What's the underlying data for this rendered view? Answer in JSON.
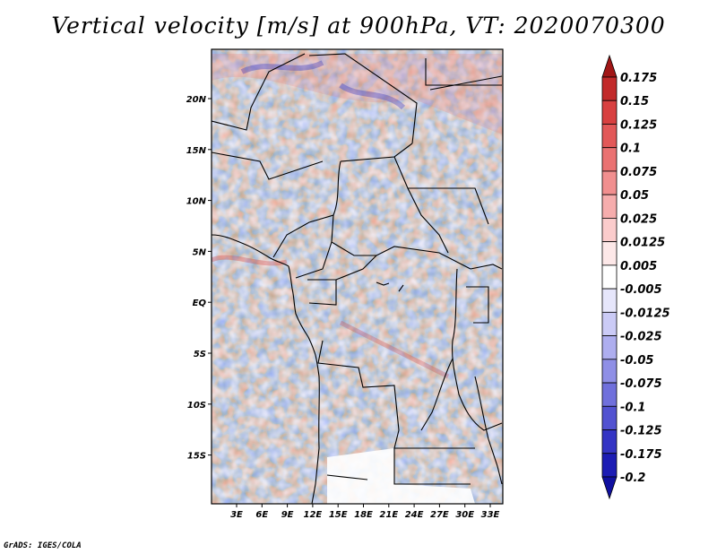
{
  "title": "Vertical velocity [m/s] at 900hPa, VT: 2020070300",
  "credit": "GrADS: IGES/COLA",
  "map": {
    "lon_ticks": [
      "3E",
      "6E",
      "9E",
      "12E",
      "15E",
      "18E",
      "21E",
      "24E",
      "27E",
      "30E",
      "33E"
    ],
    "lat_ticks": [
      "20N",
      "15N",
      "10N",
      "5N",
      "EQ",
      "5S",
      "10S",
      "15S"
    ]
  },
  "colorbar": {
    "labels": [
      "0.175",
      "0.15",
      "0.125",
      "0.1",
      "0.075",
      "0.05",
      "0.025",
      "0.0125",
      "0.005",
      "-0.005",
      "-0.0125",
      "-0.025",
      "-0.05",
      "-0.075",
      "-0.1",
      "-0.125",
      "-0.175",
      "-0.2"
    ],
    "colors": [
      "#a11616",
      "#c22a2a",
      "#d84040",
      "#e25858",
      "#ea7272",
      "#f18f8f",
      "#f6adad",
      "#fbcccc",
      "#fde8e8",
      "#ffffff",
      "#e6e6fb",
      "#cbcbf6",
      "#aeaeef",
      "#8f8fe6",
      "#7070dc",
      "#5252d1",
      "#3434c4",
      "#1c1cb4",
      "#1010a0"
    ]
  }
}
